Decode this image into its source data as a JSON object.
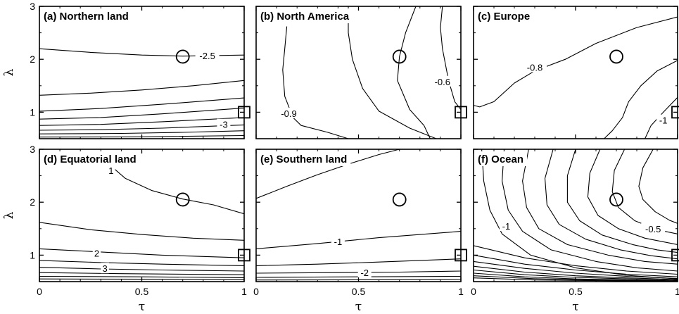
{
  "chart_data": {
    "type": "contour",
    "xlabel": "τ",
    "ylabel": "λ",
    "xlim": [
      0,
      1
    ],
    "ylim": [
      0.5,
      3
    ],
    "xticks": [
      "0",
      "0.5",
      "1"
    ],
    "yticks": [
      "1",
      "2",
      "3"
    ],
    "markers": {
      "circle": {
        "tau": 0.7,
        "lambda": 2.05
      },
      "square": {
        "tau": 1.0,
        "lambda": 1.0
      }
    },
    "panels": [
      {
        "id": "a",
        "title": "(a) Northern land",
        "contours": [
          [
            [
              0,
              2.2
            ],
            [
              0.25,
              2.13
            ],
            [
              0.5,
              2.08
            ],
            [
              0.7,
              2.06
            ],
            [
              1,
              2.08
            ]
          ],
          [
            [
              0,
              1.32
            ],
            [
              0.25,
              1.36
            ],
            [
              0.5,
              1.42
            ],
            [
              0.75,
              1.5
            ],
            [
              1,
              1.6
            ]
          ],
          [
            [
              0,
              1.02
            ],
            [
              0.3,
              1.07
            ],
            [
              0.6,
              1.15
            ],
            [
              1,
              1.27
            ]
          ],
          [
            [
              0,
              0.87
            ],
            [
              0.3,
              0.9
            ],
            [
              0.6,
              0.97
            ],
            [
              1,
              1.08
            ]
          ],
          [
            [
              0,
              0.75
            ],
            [
              0.3,
              0.77
            ],
            [
              0.6,
              0.82
            ],
            [
              1,
              0.9
            ]
          ],
          [
            [
              0,
              0.66
            ],
            [
              0.3,
              0.67
            ],
            [
              0.6,
              0.7
            ],
            [
              1,
              0.76
            ]
          ],
          [
            [
              0,
              0.59
            ],
            [
              0.4,
              0.6
            ],
            [
              0.7,
              0.62
            ],
            [
              1,
              0.65
            ]
          ],
          [
            [
              0,
              0.53
            ],
            [
              0.5,
              0.535
            ],
            [
              1,
              0.56
            ]
          ]
        ],
        "labels": [
          {
            "text": "-2.5",
            "tau": 0.82,
            "lambda": 2.07
          },
          {
            "text": "-3",
            "tau": 0.9,
            "lambda": 0.77
          }
        ]
      },
      {
        "id": "b",
        "title": "(b) North America",
        "contours": [
          [
            [
              0.15,
              2.62
            ],
            [
              0.14,
              2.2
            ],
            [
              0.13,
              1.8
            ],
            [
              0.14,
              1.3
            ],
            [
              0.18,
              0.9
            ],
            [
              0.22,
              0.75
            ],
            [
              0.35,
              0.62
            ],
            [
              0.45,
              0.5
            ]
          ],
          [
            [
              0.45,
              3.0
            ],
            [
              0.45,
              2.5
            ],
            [
              0.47,
              2.0
            ],
            [
              0.52,
              1.45
            ],
            [
              0.6,
              1.02
            ],
            [
              0.75,
              0.7
            ],
            [
              0.88,
              0.5
            ]
          ],
          [
            [
              0.78,
              3.0
            ],
            [
              0.73,
              2.5
            ],
            [
              0.7,
              2.05
            ],
            [
              0.69,
              1.6
            ],
            [
              0.75,
              1.05
            ],
            [
              0.82,
              0.75
            ],
            [
              0.85,
              0.5
            ]
          ],
          [
            [
              0.91,
              3.0
            ],
            [
              0.9,
              2.6
            ],
            [
              0.91,
              2.2
            ],
            [
              0.94,
              1.6
            ],
            [
              0.97,
              1.2
            ],
            [
              1.0,
              1.05
            ]
          ]
        ],
        "labels": [
          {
            "text": "-0.9",
            "tau": 0.16,
            "lambda": 0.98
          },
          {
            "text": "-0.6",
            "tau": 0.91,
            "lambda": 1.58
          }
        ]
      },
      {
        "id": "c",
        "title": "(c) Europe",
        "contours": [
          [
            [
              0,
              1.13
            ],
            [
              0.03,
              1.1
            ],
            [
              0.1,
              1.2
            ],
            [
              0.2,
              1.55
            ],
            [
              0.3,
              1.78
            ],
            [
              0.45,
              2.0
            ],
            [
              0.6,
              2.3
            ],
            [
              0.8,
              2.6
            ],
            [
              1.0,
              2.8
            ]
          ],
          [
            [
              1.0,
              1.98
            ],
            [
              0.9,
              1.78
            ],
            [
              0.82,
              1.5
            ],
            [
              0.76,
              1.2
            ],
            [
              0.73,
              0.9
            ],
            [
              0.68,
              0.65
            ],
            [
              0.64,
              0.5
            ]
          ],
          [
            [
              1.0,
              1.28
            ],
            [
              0.93,
              1.0
            ],
            [
              0.87,
              0.75
            ],
            [
              0.84,
              0.5
            ]
          ]
        ],
        "labels": [
          {
            "text": "-0.8",
            "tau": 0.3,
            "lambda": 1.85
          },
          {
            "text": "-1",
            "tau": 0.93,
            "lambda": 0.85
          }
        ]
      },
      {
        "id": "d",
        "title": "(d) Equatorial land",
        "contours": [
          [
            [
              0.33,
              2.75
            ],
            [
              0.42,
              2.45
            ],
            [
              0.55,
              2.22
            ],
            [
              0.7,
              2.06
            ],
            [
              0.85,
              1.95
            ],
            [
              1.0,
              1.78
            ]
          ],
          [
            [
              0,
              1.62
            ],
            [
              0.25,
              1.48
            ],
            [
              0.5,
              1.39
            ],
            [
              0.75,
              1.32
            ],
            [
              1,
              1.28
            ]
          ],
          [
            [
              0,
              1.12
            ],
            [
              0.3,
              1.06
            ],
            [
              0.6,
              1.0
            ],
            [
              1,
              0.95
            ]
          ],
          [
            [
              0,
              0.9
            ],
            [
              0.3,
              0.86
            ],
            [
              0.6,
              0.83
            ],
            [
              1,
              0.8
            ]
          ],
          [
            [
              0,
              0.77
            ],
            [
              0.3,
              0.74
            ],
            [
              0.6,
              0.72
            ],
            [
              1,
              0.7
            ]
          ],
          [
            [
              0,
              0.67
            ],
            [
              0.4,
              0.65
            ],
            [
              1,
              0.63
            ]
          ],
          [
            [
              0,
              0.6
            ],
            [
              0.5,
              0.59
            ],
            [
              1,
              0.575
            ]
          ],
          [
            [
              0,
              0.55
            ],
            [
              0.5,
              0.545
            ],
            [
              1,
              0.535
            ]
          ]
        ],
        "labels": [
          {
            "text": "1",
            "tau": 0.35,
            "lambda": 2.6
          },
          {
            "text": "2",
            "tau": 0.28,
            "lambda": 1.04
          },
          {
            "text": "3",
            "tau": 0.32,
            "lambda": 0.75
          }
        ]
      },
      {
        "id": "e",
        "title": "(e) Southern land",
        "contours": [
          [
            [
              0,
              2.07
            ],
            [
              0.15,
              2.3
            ],
            [
              0.3,
              2.52
            ],
            [
              0.45,
              2.72
            ],
            [
              0.6,
              2.9
            ],
            [
              0.7,
              3.0
            ]
          ],
          [
            [
              0,
              1.12
            ],
            [
              0.3,
              1.22
            ],
            [
              0.6,
              1.33
            ],
            [
              1,
              1.45
            ]
          ],
          [
            [
              0,
              0.8
            ],
            [
              0.3,
              0.83
            ],
            [
              0.6,
              0.87
            ],
            [
              1,
              0.93
            ]
          ],
          [
            [
              0,
              0.66
            ],
            [
              0.4,
              0.67
            ],
            [
              0.7,
              0.68
            ],
            [
              1,
              0.7
            ]
          ],
          [
            [
              0,
              0.58
            ],
            [
              0.5,
              0.59
            ],
            [
              1,
              0.6
            ]
          ],
          [
            [
              0,
              0.53
            ],
            [
              0.5,
              0.535
            ],
            [
              1,
              0.54
            ]
          ]
        ],
        "labels": [
          {
            "text": "-1",
            "tau": 0.4,
            "lambda": 1.26
          },
          {
            "text": "-2",
            "tau": 0.53,
            "lambda": 0.67
          }
        ]
      },
      {
        "id": "f",
        "title": "(f) Ocean",
        "contours": [
          [
            [
              0.04,
              3.0
            ],
            [
              0.05,
              2.4
            ],
            [
              0.08,
              1.85
            ],
            [
              0.14,
              1.4
            ],
            [
              0.28,
              1.0
            ],
            [
              0.5,
              0.76
            ],
            [
              0.75,
              0.62
            ],
            [
              1.0,
              0.55
            ]
          ],
          [
            [
              0.15,
              3.0
            ],
            [
              0.14,
              2.4
            ],
            [
              0.17,
              1.85
            ],
            [
              0.24,
              1.45
            ],
            [
              0.38,
              1.1
            ],
            [
              0.6,
              0.88
            ],
            [
              0.8,
              0.76
            ],
            [
              1.0,
              0.7
            ]
          ],
          [
            [
              0.27,
              3.0
            ],
            [
              0.24,
              2.4
            ],
            [
              0.26,
              1.9
            ],
            [
              0.32,
              1.5
            ],
            [
              0.46,
              1.2
            ],
            [
              0.66,
              1.0
            ],
            [
              0.84,
              0.88
            ],
            [
              1.0,
              0.83
            ]
          ],
          [
            [
              0.39,
              3.0
            ],
            [
              0.35,
              2.45
            ],
            [
              0.36,
              1.95
            ],
            [
              0.42,
              1.58
            ],
            [
              0.55,
              1.3
            ],
            [
              0.72,
              1.1
            ],
            [
              0.87,
              0.99
            ],
            [
              1.0,
              0.93
            ]
          ],
          [
            [
              0.5,
              3.0
            ],
            [
              0.46,
              2.5
            ],
            [
              0.46,
              2.0
            ],
            [
              0.52,
              1.65
            ],
            [
              0.63,
              1.38
            ],
            [
              0.78,
              1.2
            ],
            [
              0.9,
              1.1
            ],
            [
              1.0,
              1.05
            ]
          ],
          [
            [
              0.62,
              3.0
            ],
            [
              0.57,
              2.55
            ],
            [
              0.56,
              2.1
            ],
            [
              0.61,
              1.75
            ],
            [
              0.71,
              1.5
            ],
            [
              0.84,
              1.32
            ],
            [
              1.0,
              1.2
            ]
          ],
          [
            [
              0.74,
              3.0
            ],
            [
              0.69,
              2.6
            ],
            [
              0.68,
              2.2
            ],
            [
              0.71,
              1.9
            ],
            [
              0.79,
              1.65
            ],
            [
              0.9,
              1.48
            ],
            [
              1.0,
              1.4
            ]
          ],
          [
            [
              0.88,
              3.0
            ],
            [
              0.83,
              2.65
            ],
            [
              0.81,
              2.3
            ],
            [
              0.83,
              2.05
            ],
            [
              0.89,
              1.82
            ],
            [
              0.96,
              1.66
            ],
            [
              1.0,
              1.6
            ]
          ],
          [
            [
              0,
              1.18
            ],
            [
              0.25,
              0.95
            ],
            [
              0.5,
              0.8
            ],
            [
              0.75,
              0.7
            ],
            [
              1.0,
              0.64
            ]
          ],
          [
            [
              0,
              1.0
            ],
            [
              0.25,
              0.83
            ],
            [
              0.5,
              0.72
            ],
            [
              0.75,
              0.64
            ],
            [
              1.0,
              0.59
            ]
          ],
          [
            [
              0,
              0.88
            ],
            [
              0.25,
              0.75
            ],
            [
              0.5,
              0.66
            ],
            [
              0.75,
              0.6
            ],
            [
              1.0,
              0.56
            ]
          ],
          [
            [
              0,
              0.79
            ],
            [
              0.25,
              0.68
            ],
            [
              0.5,
              0.61
            ],
            [
              0.75,
              0.57
            ],
            [
              1.0,
              0.54
            ]
          ],
          [
            [
              0,
              0.72
            ],
            [
              0.25,
              0.63
            ],
            [
              0.5,
              0.58
            ],
            [
              1.0,
              0.525
            ]
          ],
          [
            [
              0,
              0.66
            ],
            [
              0.25,
              0.59
            ],
            [
              0.5,
              0.55
            ],
            [
              1.0,
              0.515
            ]
          ],
          [
            [
              0,
              0.61
            ],
            [
              0.3,
              0.555
            ],
            [
              0.6,
              0.53
            ],
            [
              1.0,
              0.508
            ]
          ],
          [
            [
              0,
              0.57
            ],
            [
              0.3,
              0.53
            ],
            [
              1.0,
              0.503
            ]
          ]
        ],
        "labels": [
          {
            "text": "-1",
            "tau": 0.16,
            "lambda": 1.55
          },
          {
            "text": "-0.5",
            "tau": 0.88,
            "lambda": 1.5
          }
        ]
      }
    ]
  }
}
